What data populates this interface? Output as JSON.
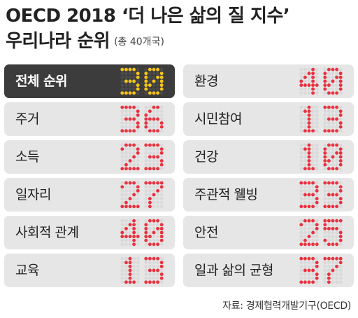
{
  "header": {
    "title_line1": "OECD 2018 ‘더 나은 삶의 질 지수’",
    "title_line2": "우리나라 순위",
    "total_note": "(총 40개국)"
  },
  "colors": {
    "dot_red": "#e8323f",
    "dot_yellow": "#f5c518",
    "dot_dim_dark": "#4a4a4a",
    "dot_dim_light": "#dadada",
    "row_bg": "#e6e6e6",
    "row_highlight_bg": "#3c3c3c"
  },
  "chart_data": {
    "type": "table",
    "categories": [
      "전체 순위",
      "주거",
      "소득",
      "일자리",
      "사회적 관계",
      "교육",
      "환경",
      "시민참여",
      "건강",
      "주관적 웰빙",
      "안전",
      "일과 삶의 균형"
    ],
    "values": [
      30,
      36,
      23,
      27,
      40,
      13,
      40,
      13,
      10,
      33,
      25,
      37
    ],
    "highlight": "전체 순위"
  },
  "source": "자료: 경제협력개발기구(OECD)"
}
